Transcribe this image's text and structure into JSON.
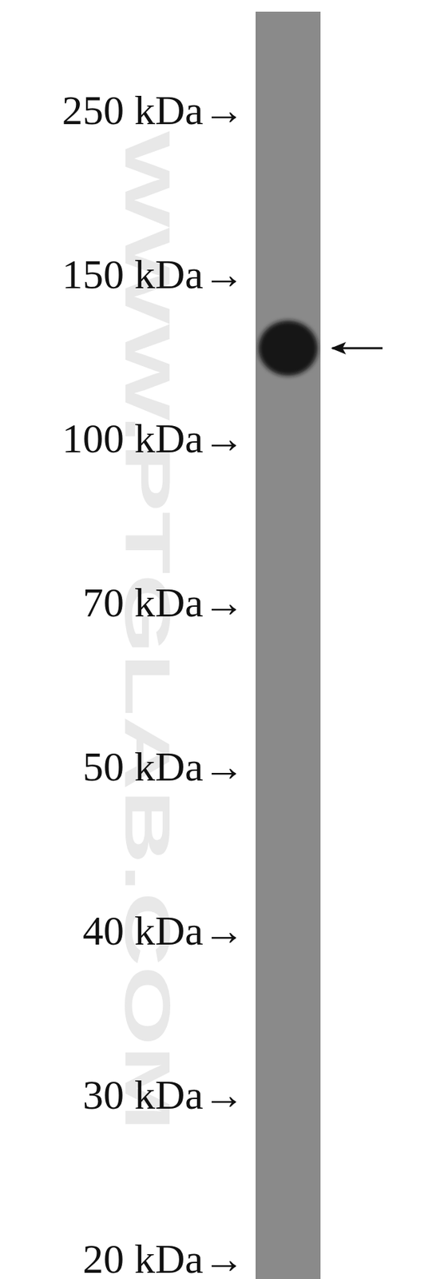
{
  "chart_data": {
    "type": "western_blot",
    "categories": [
      null
    ],
    "values": [
      125
    ],
    "color": "#151515",
    "log": "y",
    "ylim": [
      19,
      340
    ],
    "yticks": [
      {
        "value": 250,
        "label": "250 kDa→"
      },
      {
        "value": 150,
        "label": "150 kDa→"
      },
      {
        "value": 100,
        "label": "100 kDa→"
      },
      {
        "value": 70,
        "label": "70 kDa→"
      },
      {
        "value": 50,
        "label": "50 kDa→"
      },
      {
        "value": 40,
        "label": "40 kDa→"
      },
      {
        "value": 30,
        "label": "30 kDa→"
      },
      {
        "value": 20,
        "label": "20 kDa→"
      }
    ],
    "annotations": [
      "WWW.PTGLAB.COM"
    ]
  }
}
